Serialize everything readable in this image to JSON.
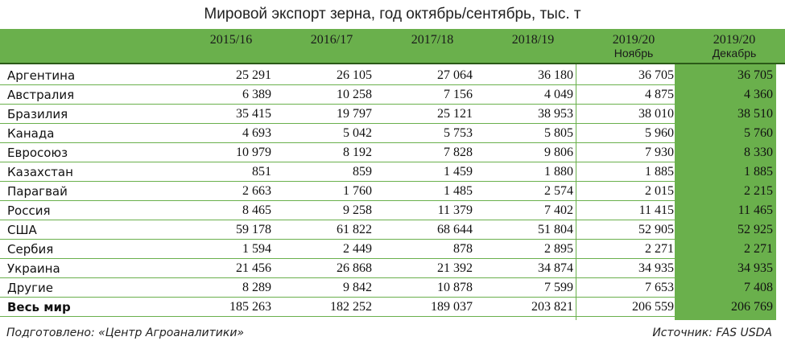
{
  "title": "Мировой экспорт зерна, год октябрь/сентябрь, тыс. т",
  "colors": {
    "header": "#6ab04c",
    "highlight": "#6ab04c"
  },
  "columns": [
    {
      "label": "2015/16",
      "sub": ""
    },
    {
      "label": "2016/17",
      "sub": ""
    },
    {
      "label": "2017/18",
      "sub": ""
    },
    {
      "label": "2018/19",
      "sub": ""
    },
    {
      "label": "2019/20",
      "sub": "Ноябрь"
    },
    {
      "label": "2019/20",
      "sub": "Декабрь"
    }
  ],
  "rows": [
    {
      "name": "Аргентина",
      "values": [
        "25 291",
        "26 105",
        "27 064",
        "36 180",
        "36 705",
        "36 705"
      ]
    },
    {
      "name": "Австралия",
      "values": [
        "6 389",
        "10 258",
        "7 156",
        "4 049",
        "4 875",
        "4 360"
      ]
    },
    {
      "name": "Бразилия",
      "values": [
        "35 415",
        "19 797",
        "25 121",
        "38 953",
        "38 010",
        "38 510"
      ]
    },
    {
      "name": "Канада",
      "values": [
        "4 693",
        "5 042",
        "5 753",
        "5 805",
        "5 960",
        "5 760"
      ]
    },
    {
      "name": "Евросоюз",
      "values": [
        "10 979",
        "8 192",
        "7 828",
        "9 806",
        "7 930",
        "8 330"
      ]
    },
    {
      "name": "Казахстан",
      "values": [
        "851",
        "859",
        "1 459",
        "1 880",
        "1 885",
        "1 885"
      ]
    },
    {
      "name": "Парагвай",
      "values": [
        "2 663",
        "1 760",
        "1 485",
        "2 574",
        "2 015",
        "2 215"
      ]
    },
    {
      "name": "Россия",
      "values": [
        "8 465",
        "9 258",
        "11 379",
        "7 402",
        "11 415",
        "11 465"
      ]
    },
    {
      "name": "США",
      "values": [
        "59 178",
        "61 822",
        "68 644",
        "51 804",
        "52 905",
        "52 925"
      ]
    },
    {
      "name": "Сербия",
      "values": [
        "1 594",
        "2 449",
        "878",
        "2 895",
        "2 271",
        "2 271"
      ]
    },
    {
      "name": "Украина",
      "values": [
        "21 456",
        "26 868",
        "21 392",
        "34 874",
        "34 935",
        "34 935"
      ]
    },
    {
      "name": "Другие",
      "values": [
        "8 289",
        "9 842",
        "10 878",
        "7 599",
        "7 653",
        "7 408"
      ]
    },
    {
      "name": "Весь мир",
      "values": [
        "185 263",
        "182 252",
        "189 037",
        "203 821",
        "206 559",
        "206 769"
      ],
      "bold": true
    }
  ],
  "footer": {
    "left": "Подготовлено: «Центр Агроаналитики»",
    "right": "Источник: FAS USDA"
  }
}
